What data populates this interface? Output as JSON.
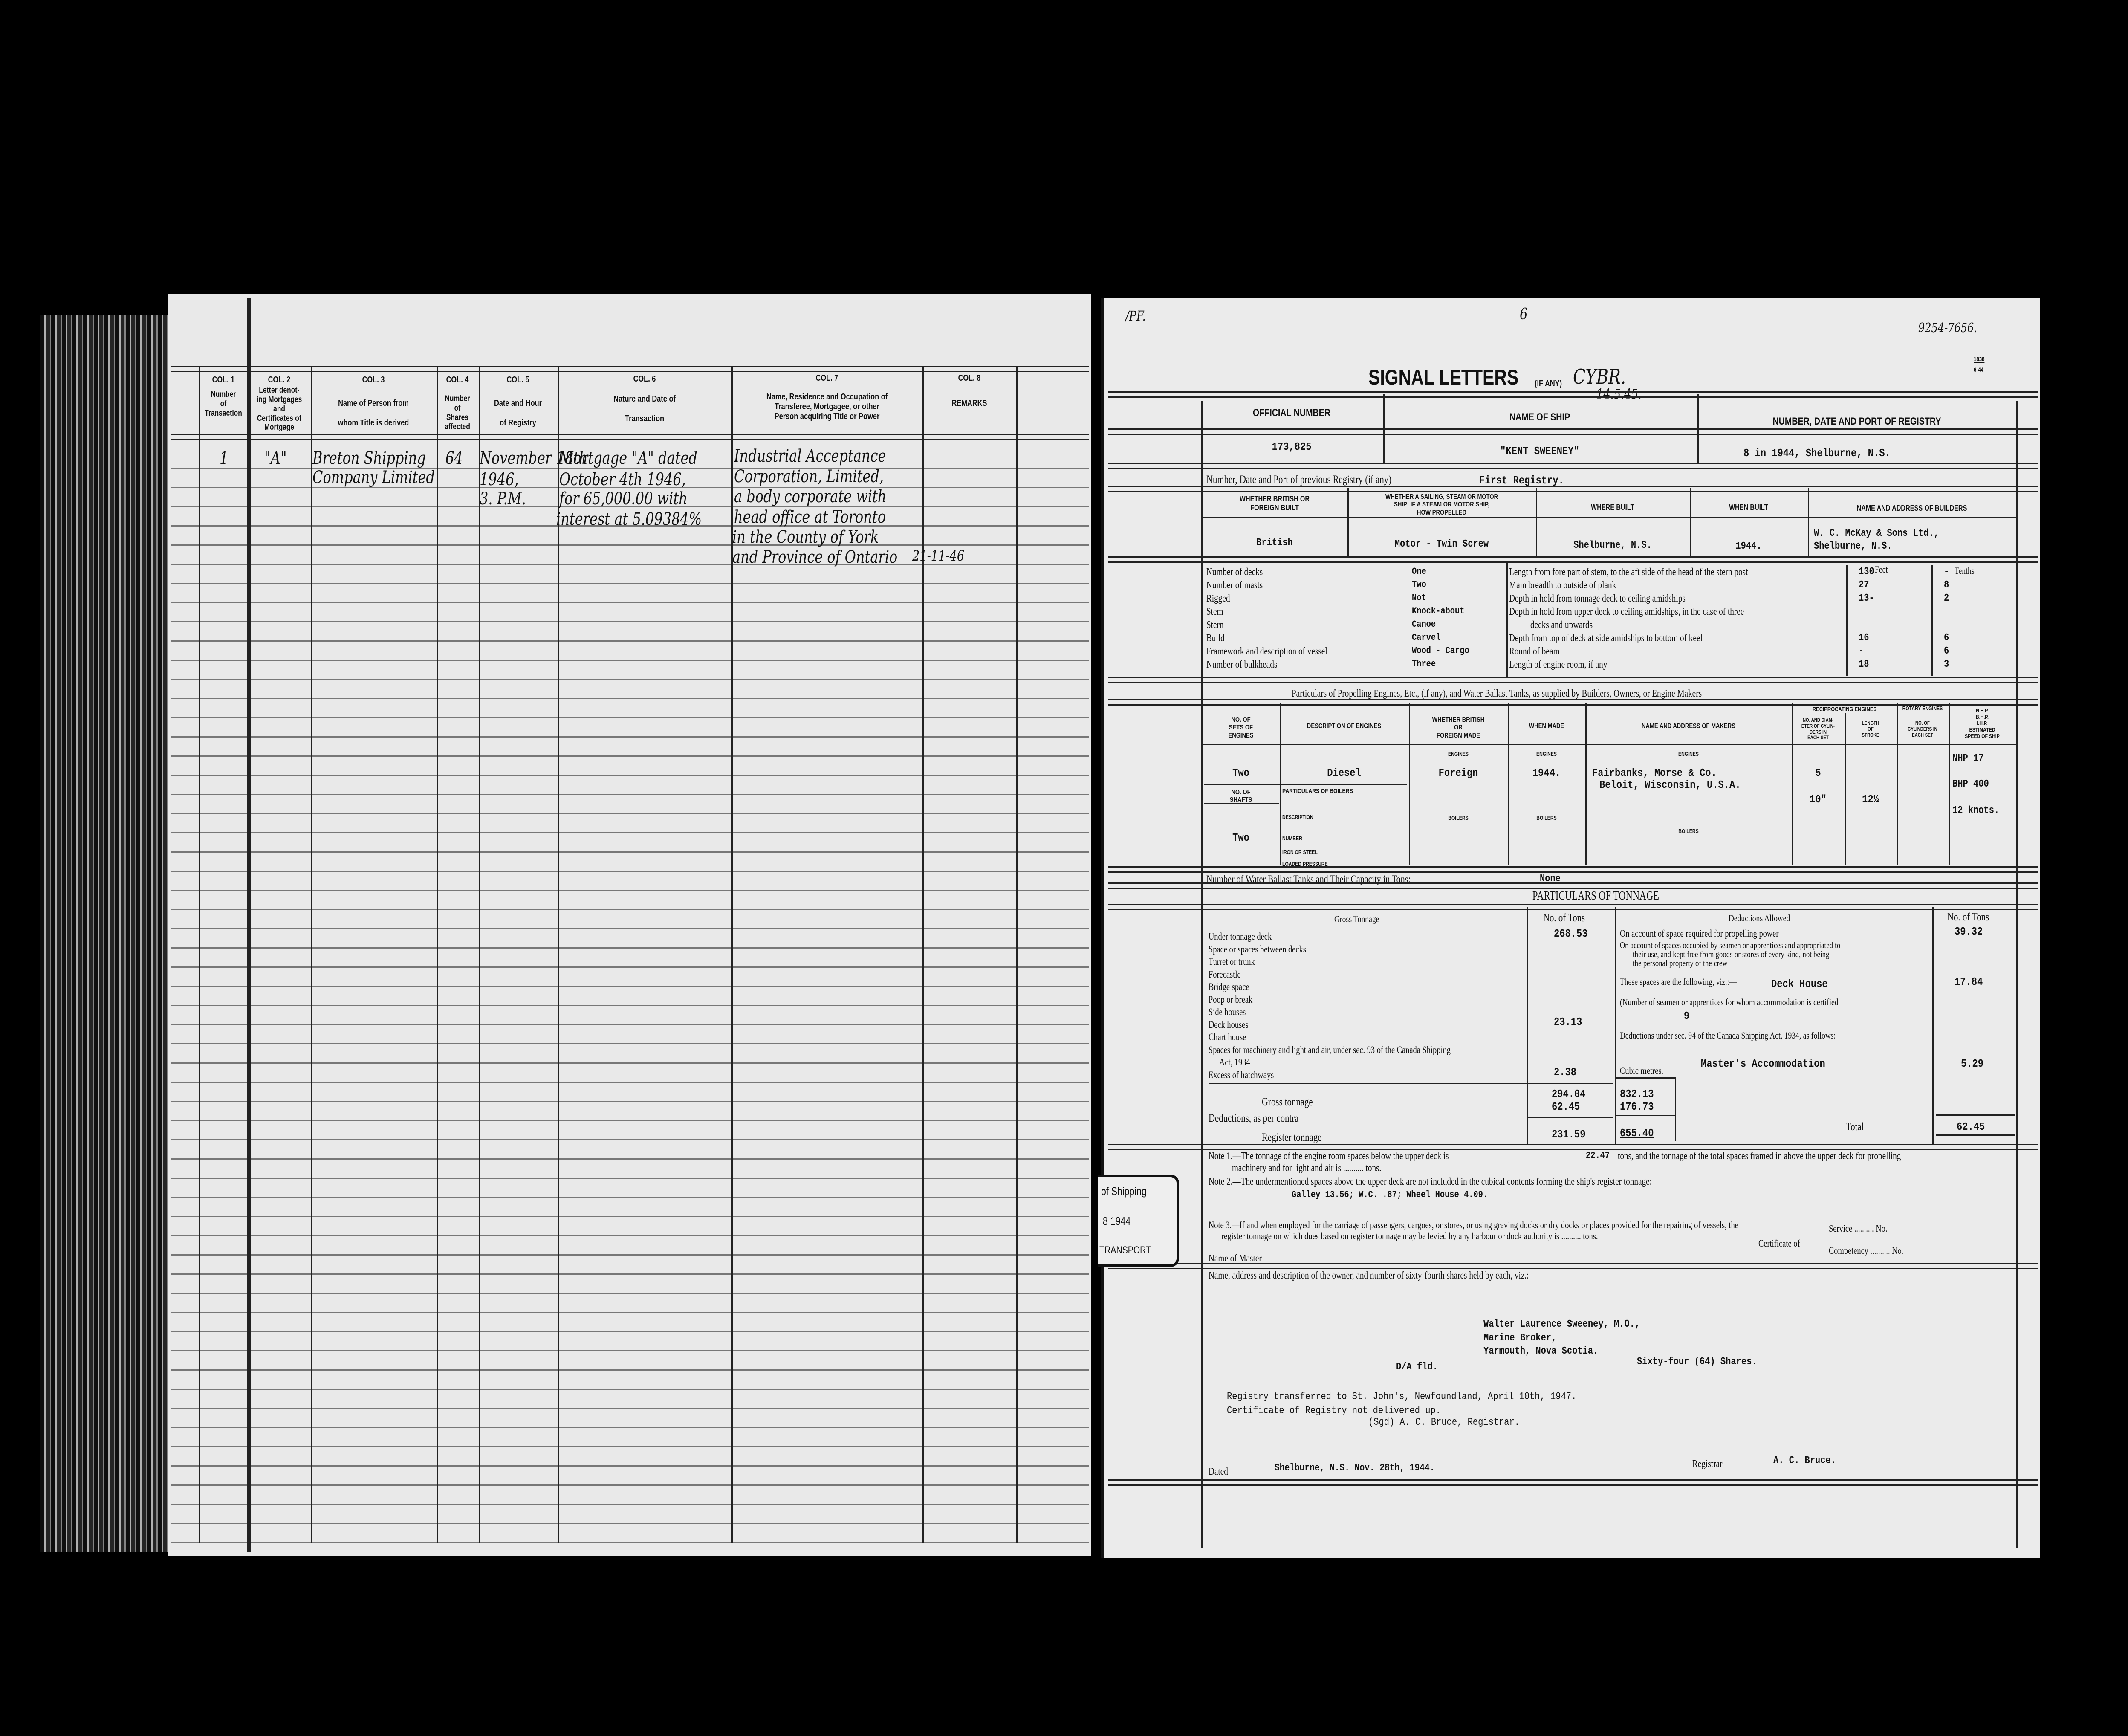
{
  "left_page": {
    "columns": [
      {
        "col": "COL. 1",
        "title": "Number\nof\nTransaction"
      },
      {
        "col": "COL. 2",
        "title": "Letter denot-\ning Mortgages\nand\nCertificates of\nMortgage"
      },
      {
        "col": "COL. 3",
        "title": "Name of Person from\n\nwhom Title is derived"
      },
      {
        "col": "COL. 4",
        "title": "Number\nof\nShares\naffected"
      },
      {
        "col": "COL. 5",
        "title": "Date and Hour\n\nof Registry"
      },
      {
        "col": "COL. 6",
        "title": "Nature and Date of\n\nTransaction"
      },
      {
        "col": "COL. 7",
        "title": "Name, Residence and Occupation of\nTransferee, Mortgagee, or other\nPerson acquiring Title or Power"
      },
      {
        "col": "COL. 8",
        "title": "REMARKS"
      }
    ],
    "entry": {
      "number": "1",
      "letter": "\"A\"",
      "from": [
        "Breton Shipping",
        "Company Limited"
      ],
      "shares": "64",
      "date": [
        "November 18th",
        "1946,",
        "3. P.M."
      ],
      "nature": [
        "Mortgage \"A\" dated",
        "October 4th 1946,",
        "for 65,000.00 with",
        "interest at 5.09384%"
      ],
      "transferee": [
        "Industrial Acceptance",
        "Corporation, Limited,",
        "a body corporate with",
        "head office at Toronto",
        "in the County of York",
        "and Province of Ontario"
      ],
      "remark_date": "21-11-46"
    }
  },
  "right_page": {
    "top_marks": {
      "left": "/PF.",
      "center": "6",
      "ref": "9254-7656.",
      "form_no": "1838",
      "form_date": "6-44"
    },
    "signal": {
      "label": "SIGNAL LETTERS",
      "if_any": "(IF ANY)",
      "value": "CYBR.",
      "date": "14.5.45."
    },
    "registry": {
      "official_number_label": "OFFICIAL NUMBER",
      "official_number": "173,825",
      "name_label": "NAME OF SHIP",
      "name": "\"KENT SWEENEY\"",
      "port_label": "NUMBER, DATE AND PORT OF REGISTRY",
      "port": "8 in 1944, Shelburne, N.S."
    },
    "previous": {
      "label": "Number, Date and Port of previous Registry (if any)",
      "value": "First Registry."
    },
    "built": {
      "headers": [
        "WHETHER BRITISH OR\nFOREIGN BUILT",
        "WHETHER A SAILING, STEAM OR MOTOR\nSHIP; IF A STEAM OR MOTOR SHIP,\nHOW PROPELLED",
        "WHERE BUILT",
        "WHEN BUILT",
        "NAME AND ADDRESS OF BUILDERS"
      ],
      "values": [
        "British",
        "Motor - Twin Screw",
        "Shelburne, N.S.",
        "1944.",
        "W. C. McKay & Sons Ltd.,",
        "Shelburne, N.S."
      ]
    },
    "particulars": [
      {
        "label": "Number of decks",
        "value": "One"
      },
      {
        "label": "Number of masts",
        "value": "Two"
      },
      {
        "label": "Rigged",
        "value": "Not"
      },
      {
        "label": "Stem",
        "value": "Knock-about"
      },
      {
        "label": "Stern",
        "value": "Canoe"
      },
      {
        "label": "Build",
        "value": "Carvel"
      },
      {
        "label": "Framework and description of vessel",
        "value": "Wood - Cargo"
      },
      {
        "label": "Number of bulkheads",
        "value": "Three"
      }
    ],
    "dimensions": {
      "feet_label": "Feet",
      "tenths_label": "Tenths",
      "rows": [
        {
          "label": "Length from fore part of stem, to the aft side of the head of the stern post",
          "feet": "130",
          "tenths": "-"
        },
        {
          "label": "Main breadth to outside of plank",
          "feet": "27",
          "tenths": "8"
        },
        {
          "label": "Depth in hold from tonnage deck to ceiling amidships",
          "feet": "13-",
          "tenths": "2"
        },
        {
          "label": "Depth in hold from upper deck to ceiling amidships, in the case of three",
          "feet": "",
          "tenths": ""
        },
        {
          "label": "decks and upwards",
          "feet": "",
          "tenths": ""
        },
        {
          "label": "Depth from top of deck at side amidships to bottom of keel",
          "feet": "16",
          "tenths": "6"
        },
        {
          "label": "Round of beam",
          "feet": "-",
          "tenths": "6"
        },
        {
          "label": "Length of engine room, if any",
          "feet": "18",
          "tenths": "3"
        }
      ]
    },
    "engines": {
      "title": "Particulars of Propelling Engines, Etc., (if any), and Water Ballast Tanks, as supplied by Builders, Owners, or Engine Makers",
      "headers": [
        "NO. OF\nSETS OF\nENGINES",
        "DESCRIPTION OF ENGINES",
        "WHETHER BRITISH\nOR\nFOREIGN MADE",
        "WHEN MADE",
        "NAME AND ADDRESS OF MAKERS",
        "NO. AND DIAM-\nETER OF CYLIN-\nDERS IN\nEACH SET",
        "LENGTH\nOF\nSTROKE",
        "NO. OF\nCYLINDERS IN\nEACH SET",
        "N.H.P.\nB.H.P.\nI.H.P.\nESTIMATED\nSPEED OF SHIP"
      ],
      "reciprocating_label": "RECIPROCATING ENGINES",
      "rotary_label": "ROTARY ENGINES",
      "engines_label": "ENGINES",
      "boilers_label": "BOILERS",
      "sets": "Two",
      "description": "Diesel",
      "origin": "Foreign",
      "when_made": "1944.",
      "maker": [
        "Fairbanks, Morse & Co.",
        "Beloit, Wisconsin, U.S.A."
      ],
      "cylinders": "5",
      "diameter": "10\"",
      "stroke": "12½",
      "nhp": "NHP  17",
      "bhp": "BHP 400",
      "speed": "12 knots.",
      "shafts_label": "NO. OF\nSHAFTS",
      "shafts": "Two",
      "boilers_header": "PARTICULARS OF BOILERS",
      "boiler_fields": [
        "DESCRIPTION",
        "NUMBER",
        "IRON OR STEEL",
        "LOADED PRESSURE"
      ]
    },
    "ballast": {
      "label": "Number of Water Ballast Tanks and Their Capacity in Tons:—",
      "value": "None"
    },
    "tonnage": {
      "title": "PARTICULARS OF TONNAGE",
      "gross_header": "Gross Tonnage",
      "tons_header": "No. of Tons",
      "deductions_header": "Deductions Allowed",
      "gross_rows": [
        {
          "label": "Under tonnage deck",
          "value": "268.53"
        },
        {
          "label": "Space or spaces between decks",
          "value": ""
        },
        {
          "label": "Turret or trunk",
          "value": ""
        },
        {
          "label": "Forecastle",
          "value": ""
        },
        {
          "label": "Bridge space",
          "value": ""
        },
        {
          "label": "Poop or break",
          "value": ""
        },
        {
          "label": "Side houses",
          "value": ""
        },
        {
          "label": "Deck houses",
          "value": "23.13"
        },
        {
          "label": "Chart house",
          "value": ""
        },
        {
          "label": "Spaces for machinery and light and air, under sec. 93 of the Canada Shipping",
          "value": ""
        },
        {
          "label": "Act, 1934",
          "value": ""
        },
        {
          "label": "Excess of hatchways",
          "value": "2.38"
        }
      ],
      "gross_tonnage_label": "Gross tonnage",
      "gross_tonnage": "294.04",
      "gross_cubic": "832.13",
      "deductions_label": "Deductions, as per contra",
      "deductions": "62.45",
      "deductions_cubic": "176.73",
      "register_label": "Register tonnage",
      "register": "231.59",
      "register_cubic": "655.40",
      "cubic_label": "Cubic metres.",
      "propelling_label": "On account of space required for propelling power",
      "propelling": "39.32",
      "seamen_text": [
        "On account of spaces occupied by seamen or apprentices and appropriated to",
        "their use, and kept free from goods or stores of every kind, not being",
        "the personal property of the crew"
      ],
      "spaces_label": "These spaces are the following, viz.:—",
      "spaces_value": "Deck House",
      "spaces_tons": "17.84",
      "seamen_count_label": "(Number of seamen or apprentices for whom accommodation is certified",
      "seamen_count": "9",
      "sec94_label": "Deductions under sec. 94 of the Canada Shipping Act, 1934, as follows:",
      "master_label": "Master's Accommodation",
      "master_tons": "5.29",
      "total_label": "Total",
      "total": "62.45"
    },
    "notes": {
      "note1a": "Note 1.—The tonnage of the engine room spaces below the upper deck is",
      "note1_value": "22.47",
      "note1b": "tons, and the tonnage of the total spaces framed in above the upper deck for propelling",
      "note1c": "machinery and for light and air is .......... tons.",
      "note2": "Note 2.—The undermentioned spaces above the upper deck are not included in the cubical contents forming the ship's register tonnage:",
      "note2_value": "Galley 13.56; W.C. .87; Wheel House 4.09.",
      "note3a": "Note 3.—If and when employed for the carriage of passengers, cargoes, or stores, or using graving docks or dry docks or places provided for the repairing of vessels, the",
      "note3b": "register tonnage on which dues based on register tonnage may be levied by any harbour or dock authority is .......... tons.",
      "certificate_label": "Certificate of",
      "service_label": "Service .......... No.",
      "competency_label": "Competency .......... No.",
      "master_label": "Name of Master"
    },
    "stamp": {
      "line1": "of Shipping",
      "line2": "8  1944",
      "line3": "TRANSPORT"
    },
    "owners": {
      "label": "Name, address and description of the owner, and number of sixty-fourth shares held by each, viz.:—",
      "lines": [
        "Walter Laurence Sweeney, M.O.,",
        "Marine Broker,",
        "Yarmouth, Nova Scotia."
      ],
      "shares": "Sixty-four (64) Shares.",
      "da": "D/A fld.",
      "transfer": [
        "Registry transferred to St. John's, Newfoundland, April 10th, 1947.",
        "Certificate of Registry not delivered up.",
        "(Sgd) A. C. Bruce, Registrar."
      ]
    },
    "footer": {
      "dated_label": "Dated",
      "dated_value": "Shelburne, N.S.   Nov. 28th, 1944.",
      "registrar_label": "Registrar",
      "registrar_value": "A. C. Bruce."
    }
  }
}
